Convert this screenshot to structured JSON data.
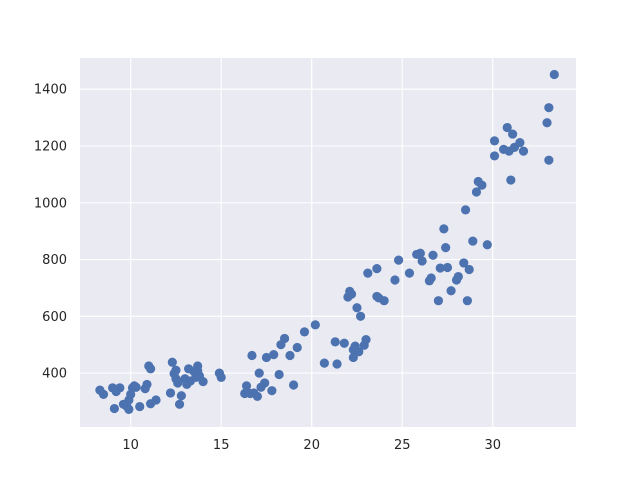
{
  "chart_data": {
    "type": "scatter",
    "title": "",
    "xlabel": "",
    "ylabel": "",
    "xlim": [
      7.2,
      34.6
    ],
    "ylim": [
      210,
      1510
    ],
    "xticks": [
      10,
      15,
      20,
      25,
      30
    ],
    "yticks": [
      400,
      600,
      800,
      1000,
      1200,
      1400
    ],
    "xtick_labels": [
      "10",
      "15",
      "20",
      "25",
      "30"
    ],
    "ytick_labels": [
      "400",
      "600",
      "800",
      "1000",
      "1200",
      "1400"
    ],
    "grid": true,
    "legend": "none",
    "colors": {
      "background": "#eaeaf2",
      "grid": "#ffffff",
      "point": "#4c72b0",
      "tick_text": "#262626"
    },
    "series": [
      {
        "points": [
          [
            8.3,
            340
          ],
          [
            8.5,
            325
          ],
          [
            9.0,
            348
          ],
          [
            9.1,
            275
          ],
          [
            9.2,
            335
          ],
          [
            9.4,
            348
          ],
          [
            9.6,
            290
          ],
          [
            9.8,
            282
          ],
          [
            9.9,
            305
          ],
          [
            9.9,
            272
          ],
          [
            10.0,
            325
          ],
          [
            10.1,
            348
          ],
          [
            10.2,
            355
          ],
          [
            10.3,
            350
          ],
          [
            10.5,
            282
          ],
          [
            10.8,
            345
          ],
          [
            10.9,
            360
          ],
          [
            11.0,
            425
          ],
          [
            11.1,
            415
          ],
          [
            11.1,
            292
          ],
          [
            11.4,
            305
          ],
          [
            12.2,
            330
          ],
          [
            12.3,
            438
          ],
          [
            12.4,
            398
          ],
          [
            12.5,
            410
          ],
          [
            12.5,
            380
          ],
          [
            12.6,
            365
          ],
          [
            12.7,
            290
          ],
          [
            12.8,
            320
          ],
          [
            13.0,
            380
          ],
          [
            13.1,
            360
          ],
          [
            13.2,
            415
          ],
          [
            13.3,
            372
          ],
          [
            13.5,
            405
          ],
          [
            13.6,
            385
          ],
          [
            13.7,
            408
          ],
          [
            13.7,
            425
          ],
          [
            13.8,
            390
          ],
          [
            14.0,
            370
          ],
          [
            14.9,
            400
          ],
          [
            15.0,
            385
          ],
          [
            16.3,
            328
          ],
          [
            16.4,
            355
          ],
          [
            16.6,
            328
          ],
          [
            16.7,
            462
          ],
          [
            16.8,
            330
          ],
          [
            17.0,
            318
          ],
          [
            17.1,
            400
          ],
          [
            17.2,
            350
          ],
          [
            17.4,
            365
          ],
          [
            17.5,
            455
          ],
          [
            17.8,
            338
          ],
          [
            17.9,
            465
          ],
          [
            18.2,
            395
          ],
          [
            18.3,
            500
          ],
          [
            18.5,
            522
          ],
          [
            18.8,
            462
          ],
          [
            19.0,
            358
          ],
          [
            19.2,
            490
          ],
          [
            19.6,
            545
          ],
          [
            20.2,
            570
          ],
          [
            20.7,
            435
          ],
          [
            21.3,
            510
          ],
          [
            21.4,
            432
          ],
          [
            21.8,
            505
          ],
          [
            22.0,
            668
          ],
          [
            22.1,
            688
          ],
          [
            22.2,
            678
          ],
          [
            22.3,
            482
          ],
          [
            22.3,
            455
          ],
          [
            22.4,
            495
          ],
          [
            22.5,
            630
          ],
          [
            22.6,
            475
          ],
          [
            22.7,
            600
          ],
          [
            22.9,
            498
          ],
          [
            23.0,
            518
          ],
          [
            23.1,
            752
          ],
          [
            23.6,
            768
          ],
          [
            23.6,
            670
          ],
          [
            23.7,
            665
          ],
          [
            24.0,
            655
          ],
          [
            24.6,
            728
          ],
          [
            24.8,
            798
          ],
          [
            25.4,
            752
          ],
          [
            25.8,
            818
          ],
          [
            26.0,
            822
          ],
          [
            26.1,
            795
          ],
          [
            26.5,
            725
          ],
          [
            26.6,
            735
          ],
          [
            26.7,
            815
          ],
          [
            27.0,
            655
          ],
          [
            27.1,
            770
          ],
          [
            27.3,
            908
          ],
          [
            27.4,
            842
          ],
          [
            27.5,
            772
          ],
          [
            27.7,
            690
          ],
          [
            28.0,
            728
          ],
          [
            28.1,
            740
          ],
          [
            28.4,
            788
          ],
          [
            28.5,
            975
          ],
          [
            28.6,
            655
          ],
          [
            28.7,
            765
          ],
          [
            28.9,
            865
          ],
          [
            29.1,
            1038
          ],
          [
            29.2,
            1075
          ],
          [
            29.4,
            1062
          ],
          [
            29.7,
            852
          ],
          [
            30.1,
            1165
          ],
          [
            30.1,
            1218
          ],
          [
            30.6,
            1188
          ],
          [
            30.8,
            1265
          ],
          [
            30.9,
            1182
          ],
          [
            31.0,
            1080
          ],
          [
            31.1,
            1242
          ],
          [
            31.2,
            1195
          ],
          [
            31.5,
            1212
          ],
          [
            31.7,
            1182
          ],
          [
            33.0,
            1282
          ],
          [
            33.1,
            1335
          ],
          [
            33.1,
            1150
          ],
          [
            33.4,
            1452
          ]
        ]
      }
    ]
  }
}
